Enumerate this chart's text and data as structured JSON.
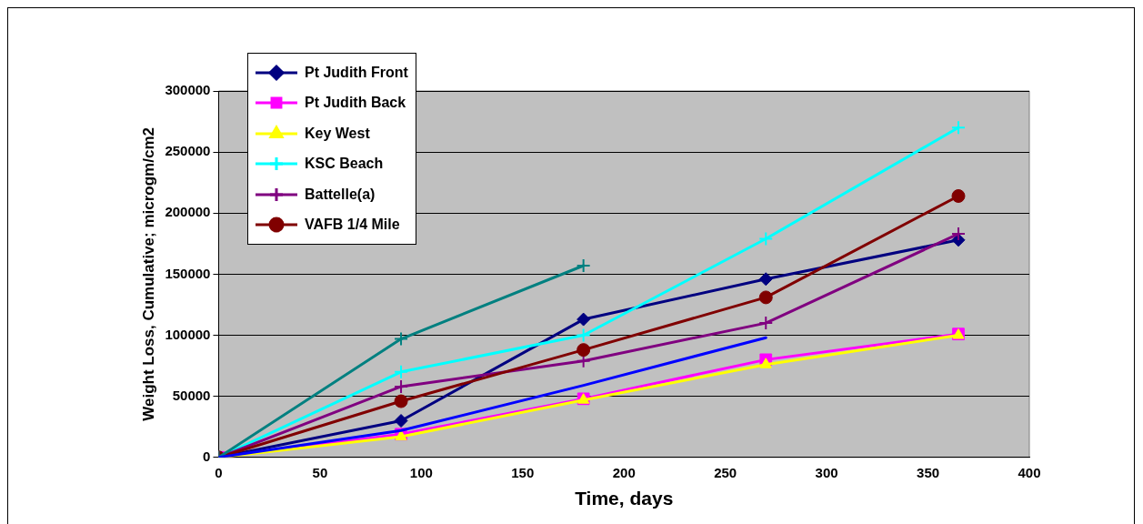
{
  "chart_data": {
    "type": "line",
    "xlabel": "Time, days",
    "ylabel": "Weight Loss, Cumulative; microgm/cm2",
    "xlim": [
      0,
      400
    ],
    "xticks": [
      0,
      50,
      100,
      150,
      200,
      250,
      300,
      350,
      400
    ],
    "ylim": [
      0,
      300000
    ],
    "yticks": [
      0,
      50000,
      100000,
      150000,
      200000,
      250000,
      300000
    ],
    "grid": "y",
    "legend": "top left",
    "line_style": "solid",
    "series": [
      {
        "name": "Pt Judith Front",
        "color": "#000080",
        "marker": "diamond",
        "x": [
          0,
          90,
          180,
          270,
          365
        ],
        "values": [
          0,
          30000,
          113000,
          146000,
          178000
        ]
      },
      {
        "name": "Pt Judith Back",
        "color": "#ff00ff",
        "marker": "square",
        "x": [
          0,
          90,
          180,
          270,
          365
        ],
        "values": [
          0,
          19000,
          48000,
          80000,
          101000
        ]
      },
      {
        "name": "Key West",
        "color": "#ffff00",
        "marker": "triangle",
        "x": [
          0,
          90,
          180,
          270,
          365
        ],
        "values": [
          0,
          17000,
          47000,
          76000,
          100000
        ]
      },
      {
        "name": "KSC Beach",
        "color": "#00ffff",
        "marker": "cross",
        "x": [
          0,
          90,
          180,
          270,
          365
        ],
        "values": [
          0,
          70000,
          100000,
          179000,
          270000
        ]
      },
      {
        "name": "Battelle(a)",
        "color": "#800080",
        "marker": "cross",
        "x": [
          0,
          90,
          180,
          270,
          365
        ],
        "values": [
          0,
          58000,
          79000,
          110000,
          183000
        ]
      },
      {
        "name": "VAFB 1/4 Mile",
        "color": "#800000",
        "marker": "circle",
        "x": [
          0,
          90,
          180,
          270,
          365
        ],
        "values": [
          0,
          46000,
          88000,
          131000,
          214000
        ]
      },
      {
        "color": "#008080",
        "marker": "cross",
        "x": [
          0,
          90,
          180
        ],
        "values": [
          0,
          97000,
          157000
        ]
      },
      {
        "color": "#0000ff",
        "marker": "none",
        "x": [
          0,
          90,
          180,
          270
        ],
        "values": [
          0,
          22000,
          59000,
          98000
        ]
      }
    ]
  }
}
